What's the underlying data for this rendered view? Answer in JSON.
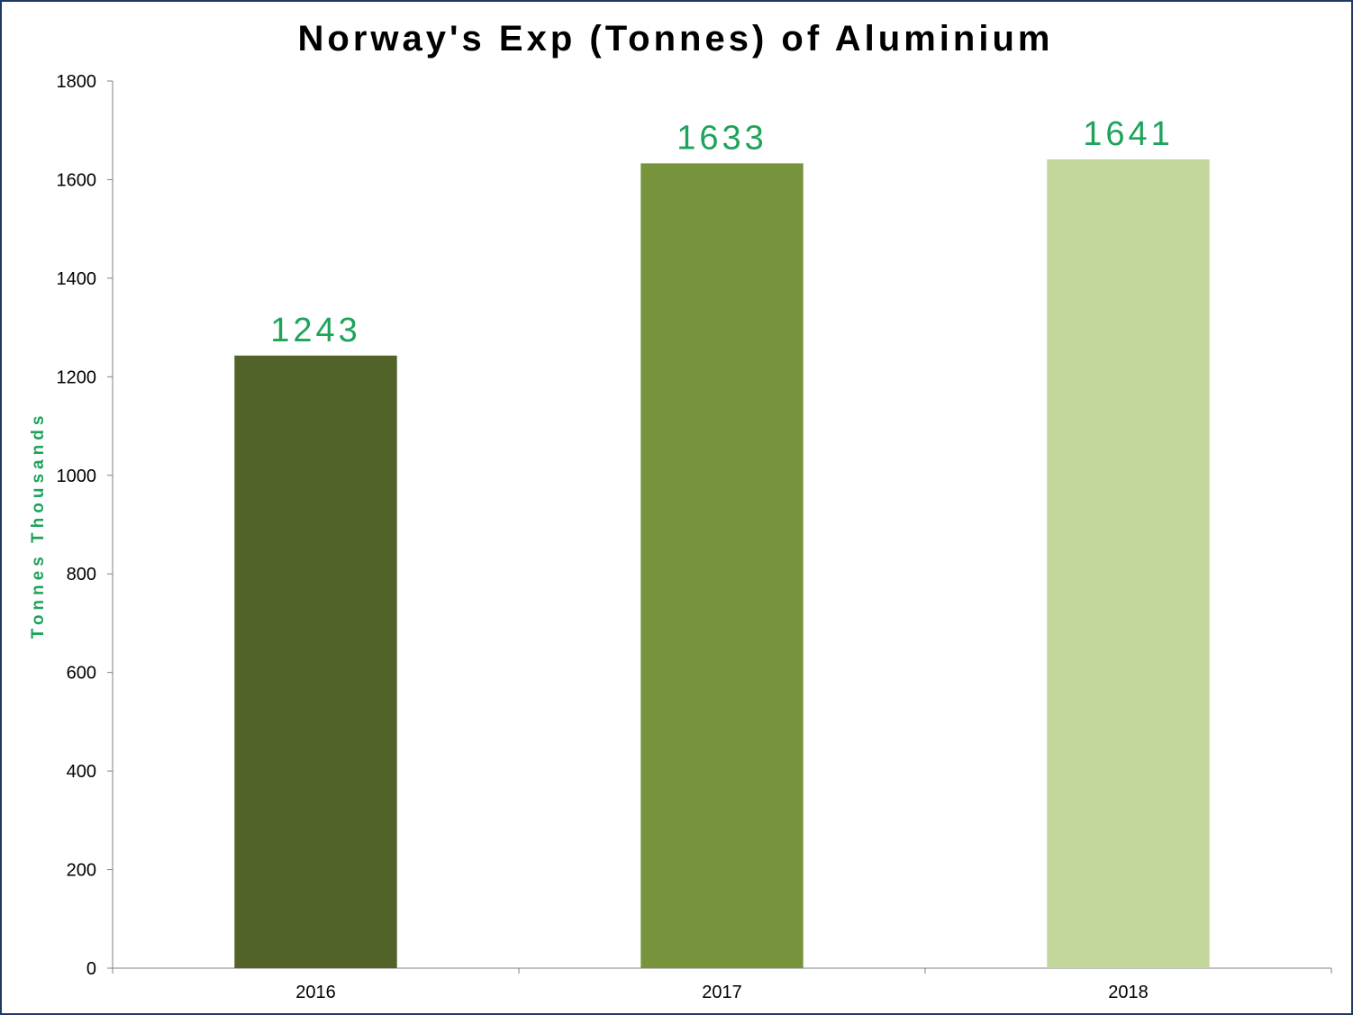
{
  "chart_data": {
    "type": "bar",
    "title": "Norway's Exp (Tonnes) of Aluminium",
    "xlabel": "",
    "ylabel": "Tonnes Thousands",
    "categories": [
      "2016",
      "2017",
      "2018"
    ],
    "values": [
      1243,
      1633,
      1641
    ],
    "data_labels": [
      "1243",
      "1633",
      "1641"
    ],
    "ylim": [
      0,
      1800
    ],
    "yticks": [
      0,
      200,
      400,
      600,
      800,
      1000,
      1200,
      1400,
      1600,
      1800
    ],
    "ytick_labels": [
      "0",
      "200",
      "400",
      "600",
      "800",
      "1000",
      "1200",
      "1400",
      "1600",
      "1800"
    ],
    "bar_colors": [
      "#52632a",
      "#77933c",
      "#c3d69b"
    ],
    "label_color": "#1ea35a",
    "border_color": "#1f3864",
    "grid": false,
    "legend": "none"
  }
}
